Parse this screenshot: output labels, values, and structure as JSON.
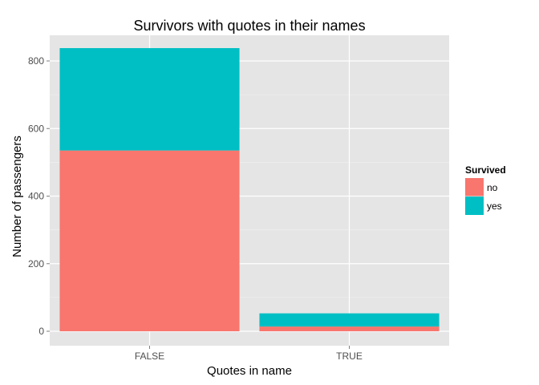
{
  "chart_data": {
    "type": "bar",
    "stacked": true,
    "title": "Survivors with quotes in their names",
    "xlabel": "Quotes in name",
    "ylabel": "Number of passengers",
    "categories": [
      "FALSE",
      "TRUE"
    ],
    "series": [
      {
        "name": "no",
        "values": [
          535,
          14
        ],
        "color": "#F8766D"
      },
      {
        "name": "yes",
        "values": [
          303,
          39
        ],
        "color": "#00BFC4"
      }
    ],
    "ylim": [
      0,
      880
    ],
    "yticks": [
      0,
      200,
      400,
      600,
      800
    ],
    "grid": true,
    "legend": {
      "title": "Survived",
      "position": "right"
    },
    "panel_background": "#E5E5E5",
    "grid_color": "#FFFFFF"
  }
}
